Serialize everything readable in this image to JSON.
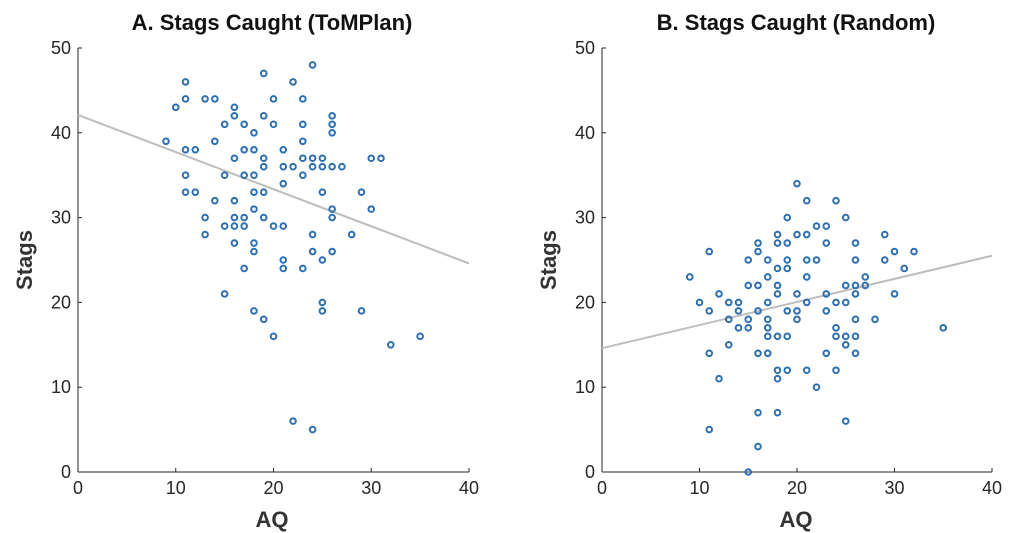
{
  "point_color": "#2e6fb0",
  "fit_line_color": "#bdbdbd",
  "chart_data": [
    {
      "type": "scatter",
      "title": "A. Stags Caught (ToMPlan)",
      "xlabel": "AQ",
      "ylabel": "Stags",
      "xlim": [
        0,
        40
      ],
      "ylim": [
        0,
        50
      ],
      "xticks": [
        "0",
        "10",
        "20",
        "30",
        "40"
      ],
      "yticks": [
        "0",
        "10",
        "20",
        "30",
        "40",
        "50"
      ],
      "grid": false,
      "points": [
        [
          9,
          39
        ],
        [
          10,
          43
        ],
        [
          11,
          46
        ],
        [
          11,
          44
        ],
        [
          11,
          38
        ],
        [
          11,
          35
        ],
        [
          11,
          33
        ],
        [
          12,
          38
        ],
        [
          12,
          33
        ],
        [
          13,
          44
        ],
        [
          13,
          30
        ],
        [
          13,
          28
        ],
        [
          14,
          44
        ],
        [
          14,
          39
        ],
        [
          14,
          32
        ],
        [
          15,
          41
        ],
        [
          15,
          35
        ],
        [
          15,
          29
        ],
        [
          15,
          21
        ],
        [
          16,
          43
        ],
        [
          16,
          42
        ],
        [
          16,
          37
        ],
        [
          16,
          32
        ],
        [
          16,
          30
        ],
        [
          16,
          29
        ],
        [
          16,
          27
        ],
        [
          17,
          41
        ],
        [
          17,
          38
        ],
        [
          17,
          35
        ],
        [
          17,
          30
        ],
        [
          17,
          29
        ],
        [
          17,
          24
        ],
        [
          18,
          40
        ],
        [
          18,
          38
        ],
        [
          18,
          35
        ],
        [
          18,
          33
        ],
        [
          18,
          31
        ],
        [
          18,
          27
        ],
        [
          18,
          26
        ],
        [
          18,
          19
        ],
        [
          19,
          47
        ],
        [
          19,
          42
        ],
        [
          19,
          37
        ],
        [
          19,
          36
        ],
        [
          19,
          33
        ],
        [
          19,
          30
        ],
        [
          19,
          18
        ],
        [
          20,
          44
        ],
        [
          20,
          41
        ],
        [
          20,
          29
        ],
        [
          20,
          16
        ],
        [
          21,
          38
        ],
        [
          21,
          36
        ],
        [
          21,
          34
        ],
        [
          21,
          29
        ],
        [
          21,
          25
        ],
        [
          21,
          24
        ],
        [
          22,
          46
        ],
        [
          22,
          36
        ],
        [
          22,
          6
        ],
        [
          23,
          44
        ],
        [
          23,
          41
        ],
        [
          23,
          39
        ],
        [
          23,
          37
        ],
        [
          23,
          35
        ],
        [
          23,
          24
        ],
        [
          24,
          48
        ],
        [
          24,
          37
        ],
        [
          24,
          36
        ],
        [
          24,
          28
        ],
        [
          24,
          26
        ],
        [
          24,
          5
        ],
        [
          25,
          37
        ],
        [
          25,
          36
        ],
        [
          25,
          33
        ],
        [
          25,
          25
        ],
        [
          25,
          20
        ],
        [
          25,
          19
        ],
        [
          26,
          42
        ],
        [
          26,
          41
        ],
        [
          26,
          40
        ],
        [
          26,
          36
        ],
        [
          26,
          31
        ],
        [
          26,
          30
        ],
        [
          26,
          26
        ],
        [
          27,
          36
        ],
        [
          28,
          28
        ],
        [
          29,
          33
        ],
        [
          29,
          19
        ],
        [
          30,
          37
        ],
        [
          30,
          31
        ],
        [
          31,
          37
        ],
        [
          32,
          15
        ],
        [
          35,
          16
        ]
      ],
      "fit_line": {
        "x": [
          0,
          40
        ],
        "y": [
          42.1,
          24.6
        ]
      }
    },
    {
      "type": "scatter",
      "title": "B. Stags Caught (Random)",
      "xlabel": "AQ",
      "ylabel": "Stags",
      "xlim": [
        0,
        40
      ],
      "ylim": [
        0,
        50
      ],
      "xticks": [
        "0",
        "10",
        "20",
        "30",
        "40"
      ],
      "yticks": [
        "0",
        "10",
        "20",
        "30",
        "40",
        "50"
      ],
      "grid": false,
      "points": [
        [
          9,
          23
        ],
        [
          10,
          20
        ],
        [
          11,
          26
        ],
        [
          11,
          19
        ],
        [
          11,
          14
        ],
        [
          11,
          5
        ],
        [
          12,
          21
        ],
        [
          12,
          11
        ],
        [
          13,
          20
        ],
        [
          13,
          18
        ],
        [
          13,
          15
        ],
        [
          14,
          20
        ],
        [
          14,
          19
        ],
        [
          14,
          17
        ],
        [
          15,
          25
        ],
        [
          15,
          22
        ],
        [
          15,
          18
        ],
        [
          15,
          17
        ],
        [
          15,
          0
        ],
        [
          16,
          27
        ],
        [
          16,
          26
        ],
        [
          16,
          22
        ],
        [
          16,
          19
        ],
        [
          16,
          14
        ],
        [
          16,
          7
        ],
        [
          16,
          3
        ],
        [
          17,
          25
        ],
        [
          17,
          23
        ],
        [
          17,
          20
        ],
        [
          17,
          18
        ],
        [
          17,
          17
        ],
        [
          17,
          16
        ],
        [
          17,
          14
        ],
        [
          18,
          28
        ],
        [
          18,
          27
        ],
        [
          18,
          24
        ],
        [
          18,
          22
        ],
        [
          18,
          21
        ],
        [
          18,
          16
        ],
        [
          18,
          12
        ],
        [
          18,
          11
        ],
        [
          18,
          7
        ],
        [
          19,
          30
        ],
        [
          19,
          27
        ],
        [
          19,
          25
        ],
        [
          19,
          24
        ],
        [
          19,
          19
        ],
        [
          19,
          16
        ],
        [
          19,
          12
        ],
        [
          20,
          34
        ],
        [
          20,
          28
        ],
        [
          20,
          21
        ],
        [
          20,
          19
        ],
        [
          20,
          18
        ],
        [
          21,
          32
        ],
        [
          21,
          28
        ],
        [
          21,
          25
        ],
        [
          21,
          23
        ],
        [
          21,
          20
        ],
        [
          21,
          12
        ],
        [
          22,
          29
        ],
        [
          22,
          25
        ],
        [
          22,
          10
        ],
        [
          23,
          29
        ],
        [
          23,
          27
        ],
        [
          23,
          21
        ],
        [
          23,
          19
        ],
        [
          23,
          14
        ],
        [
          24,
          32
        ],
        [
          24,
          20
        ],
        [
          24,
          17
        ],
        [
          24,
          16
        ],
        [
          24,
          12
        ],
        [
          25,
          30
        ],
        [
          25,
          22
        ],
        [
          25,
          20
        ],
        [
          25,
          16
        ],
        [
          25,
          15
        ],
        [
          25,
          6
        ],
        [
          26,
          27
        ],
        [
          26,
          25
        ],
        [
          26,
          22
        ],
        [
          26,
          21
        ],
        [
          26,
          18
        ],
        [
          26,
          16
        ],
        [
          26,
          14
        ],
        [
          27,
          23
        ],
        [
          27,
          22
        ],
        [
          28,
          18
        ],
        [
          29,
          28
        ],
        [
          29,
          25
        ],
        [
          30,
          26
        ],
        [
          30,
          21
        ],
        [
          31,
          24
        ],
        [
          32,
          26
        ],
        [
          35,
          17
        ]
      ],
      "fit_line": {
        "x": [
          0,
          40
        ],
        "y": [
          14.6,
          25.5
        ]
      }
    }
  ]
}
